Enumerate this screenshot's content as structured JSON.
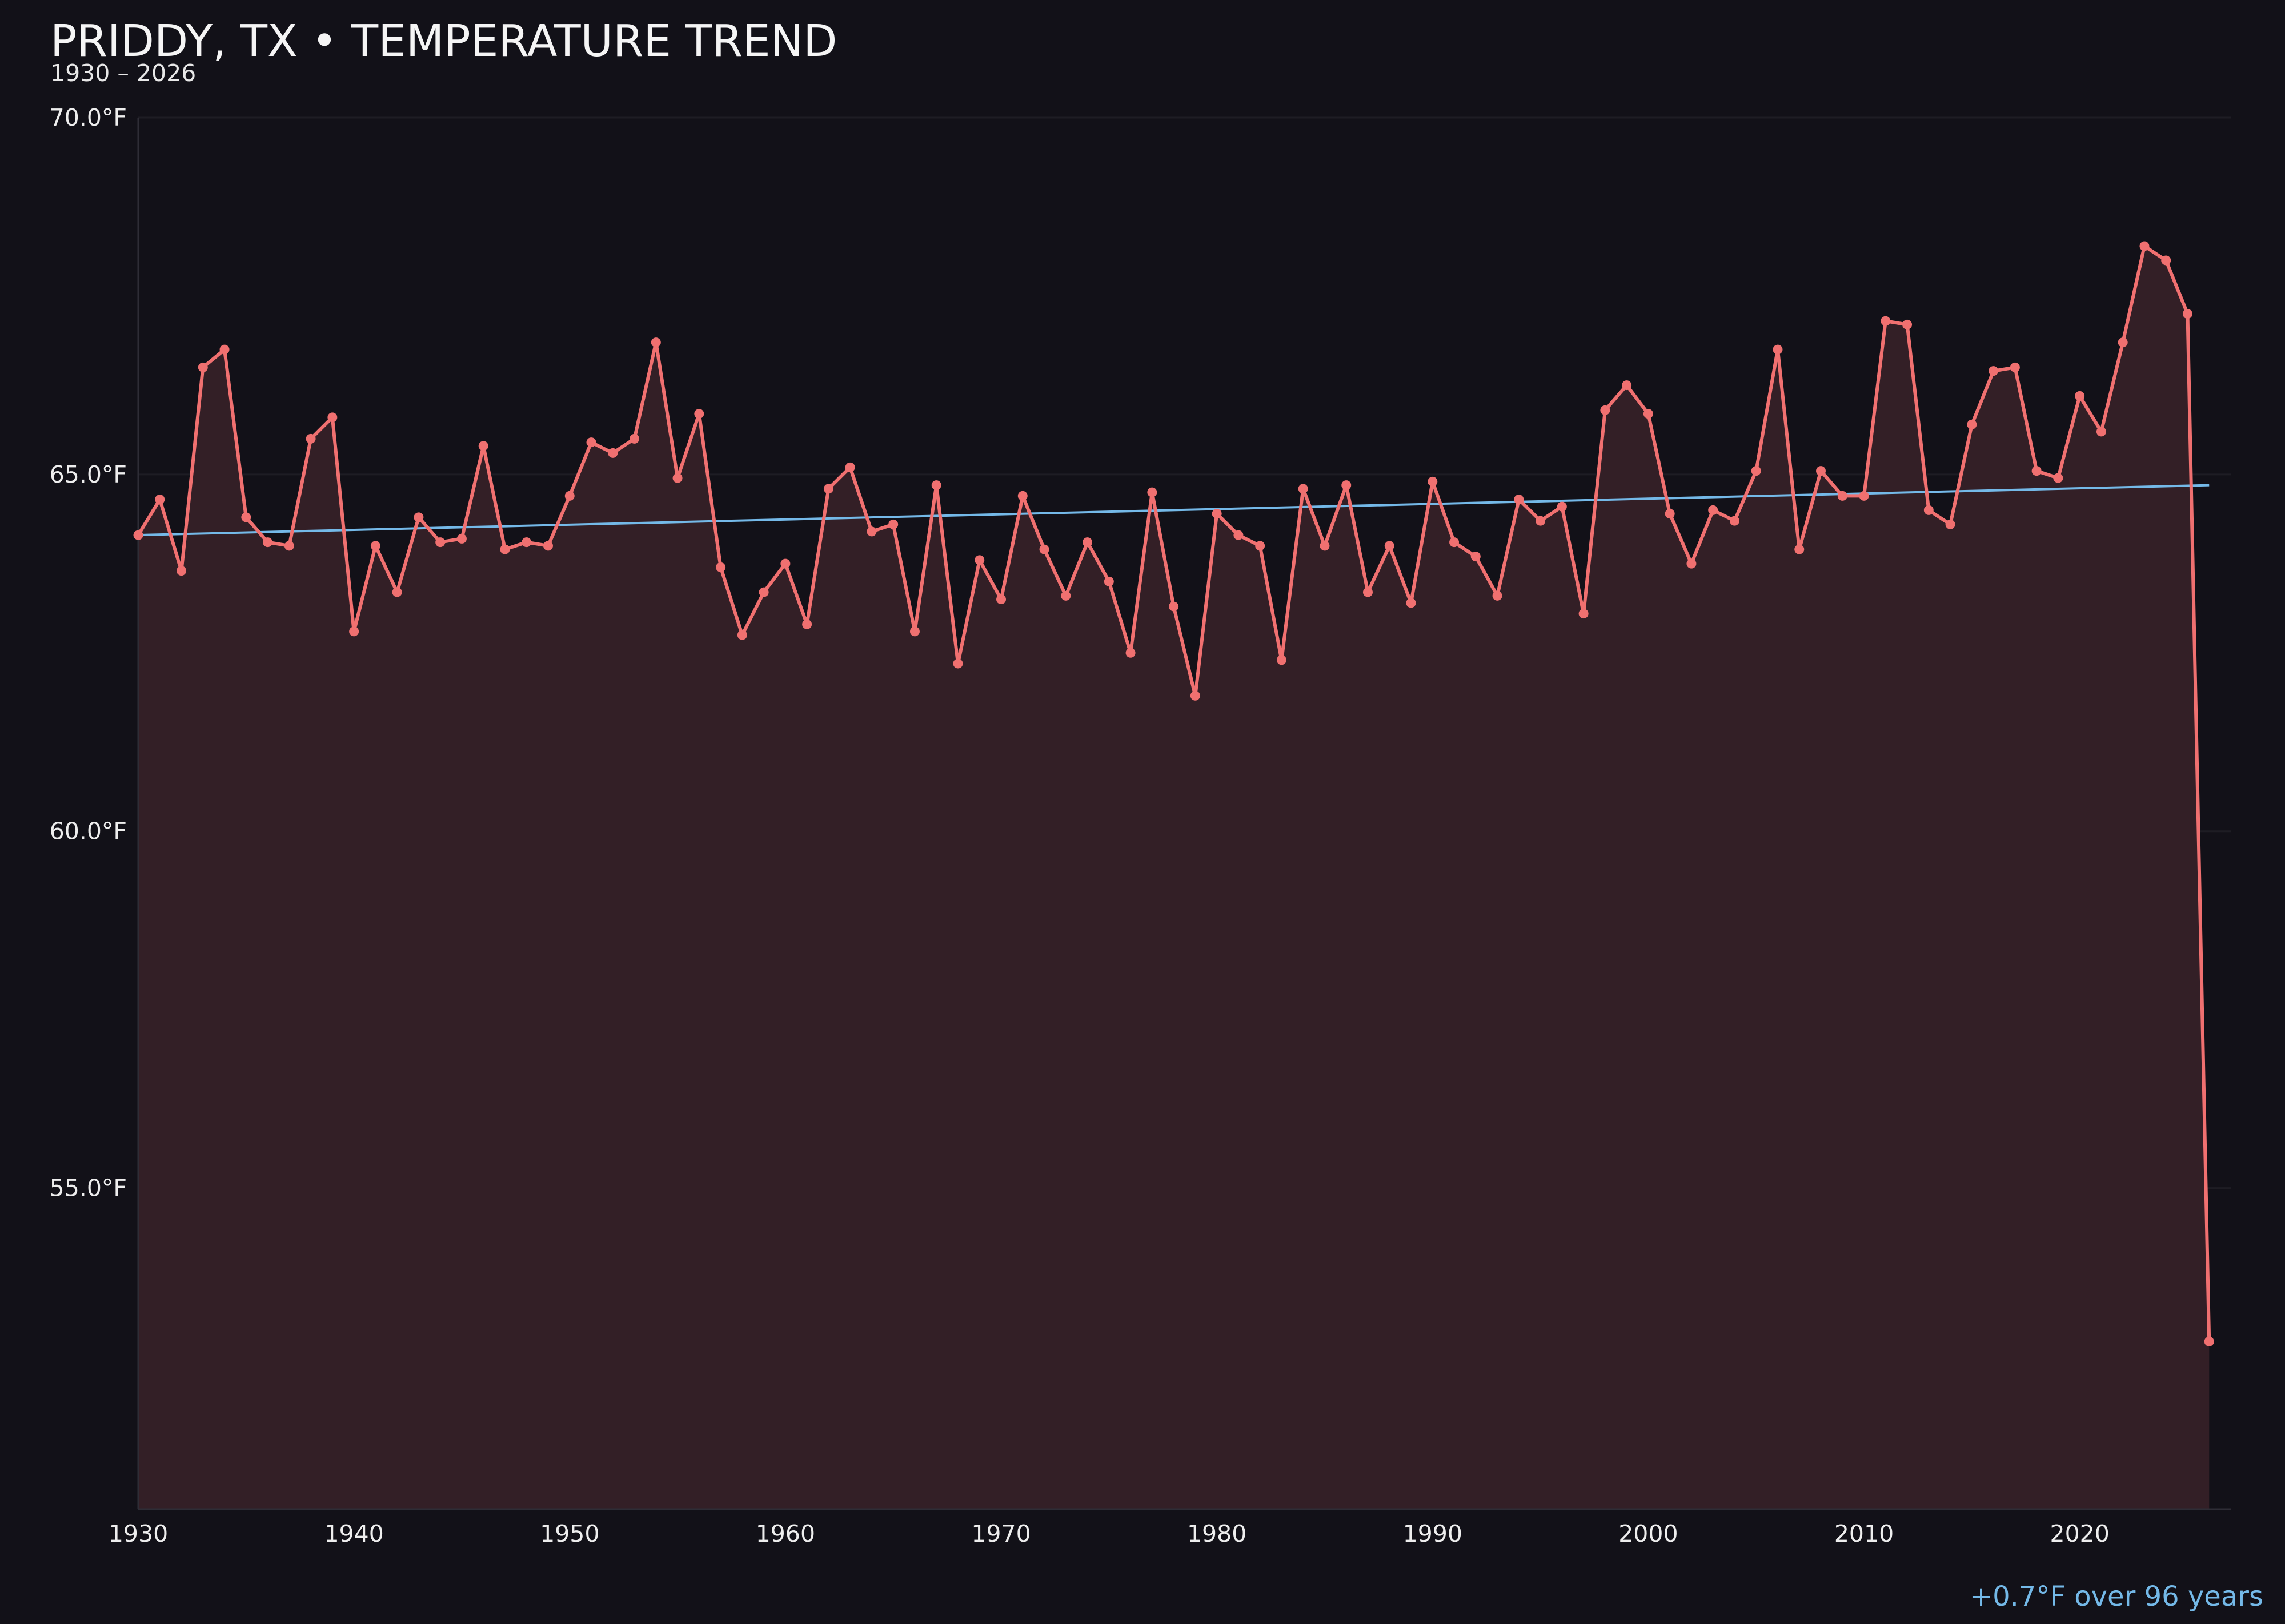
{
  "chart_data": {
    "type": "line",
    "title": "PRIDDY, TX • TEMPERATURE TREND",
    "subtitle": "1930 – 2026",
    "xlim": [
      1930,
      2027
    ],
    "ylim": [
      50.5,
      70.0
    ],
    "x_ticks": [
      1930,
      1940,
      1950,
      1960,
      1970,
      1980,
      1990,
      2000,
      2010,
      2020
    ],
    "x_tick_labels": [
      "1930",
      "1940",
      "1950",
      "1960",
      "1970",
      "1980",
      "1990",
      "2000",
      "2010",
      "2020"
    ],
    "y_ticks": [
      55,
      60,
      65,
      70
    ],
    "y_tick_labels": [
      "55.0°F",
      "60.0°F",
      "65.0°F",
      "70.0°F"
    ],
    "grid": true,
    "series": [
      {
        "x": [
          1930,
          1931,
          1932,
          1933,
          1934,
          1935,
          1936,
          1937,
          1938,
          1939,
          1940,
          1941,
          1942,
          1943,
          1944,
          1945,
          1946,
          1947,
          1948,
          1949,
          1950,
          1951,
          1952,
          1953,
          1954,
          1955,
          1956,
          1957,
          1958,
          1959,
          1960,
          1961,
          1962,
          1963,
          1964,
          1965,
          1966,
          1967,
          1968,
          1969,
          1970,
          1971,
          1972,
          1973,
          1974,
          1975,
          1976,
          1977,
          1978,
          1979,
          1980,
          1981,
          1982,
          1983,
          1984,
          1985,
          1986,
          1987,
          1988,
          1989,
          1990,
          1991,
          1992,
          1993,
          1994,
          1995,
          1996,
          1997,
          1998,
          1999,
          2000,
          2001,
          2002,
          2003,
          2004,
          2005,
          2006,
          2007,
          2008,
          2009,
          2010,
          2011,
          2012,
          2013,
          2014,
          2015,
          2016,
          2017,
          2018,
          2019,
          2020,
          2021,
          2022,
          2023,
          2024,
          2025,
          2026
        ],
        "values": [
          64.15,
          64.65,
          63.65,
          66.5,
          66.75,
          64.4,
          64.05,
          64.0,
          65.5,
          65.8,
          62.8,
          64.0,
          63.35,
          64.4,
          64.05,
          64.1,
          65.4,
          63.95,
          64.05,
          64.0,
          64.7,
          65.45,
          65.3,
          65.5,
          66.85,
          64.95,
          65.85,
          63.7,
          62.75,
          63.35,
          63.75,
          62.9,
          64.8,
          65.1,
          64.2,
          64.3,
          62.8,
          64.85,
          62.35,
          63.8,
          63.25,
          64.7,
          63.95,
          63.3,
          64.05,
          63.5,
          62.5,
          64.75,
          63.15,
          61.9,
          64.45,
          64.15,
          64.0,
          62.4,
          64.8,
          64.0,
          64.85,
          63.35,
          64.0,
          63.2,
          64.9,
          64.05,
          63.85,
          63.3,
          64.65,
          64.35,
          64.55,
          63.05,
          65.9,
          66.25,
          65.85,
          64.45,
          63.75,
          64.5,
          64.35,
          65.05,
          66.75,
          63.95,
          65.05,
          64.7,
          64.7,
          67.15,
          67.1,
          64.5,
          64.3,
          65.7,
          66.45,
          66.5,
          65.05,
          64.95,
          66.1,
          65.6,
          66.85,
          68.2,
          68.0,
          67.25,
          52.85
        ],
        "color": "#f07070"
      }
    ],
    "trend": {
      "x": [
        1930,
        2026
      ],
      "values": [
        64.15,
        64.85
      ],
      "label": "+0.7°F over 96 years",
      "color": "#74b9e8"
    },
    "colors": {
      "background": "#121118",
      "fill": "#331f26",
      "grid": "#1e1d24",
      "axis": "#2e2d36"
    }
  }
}
